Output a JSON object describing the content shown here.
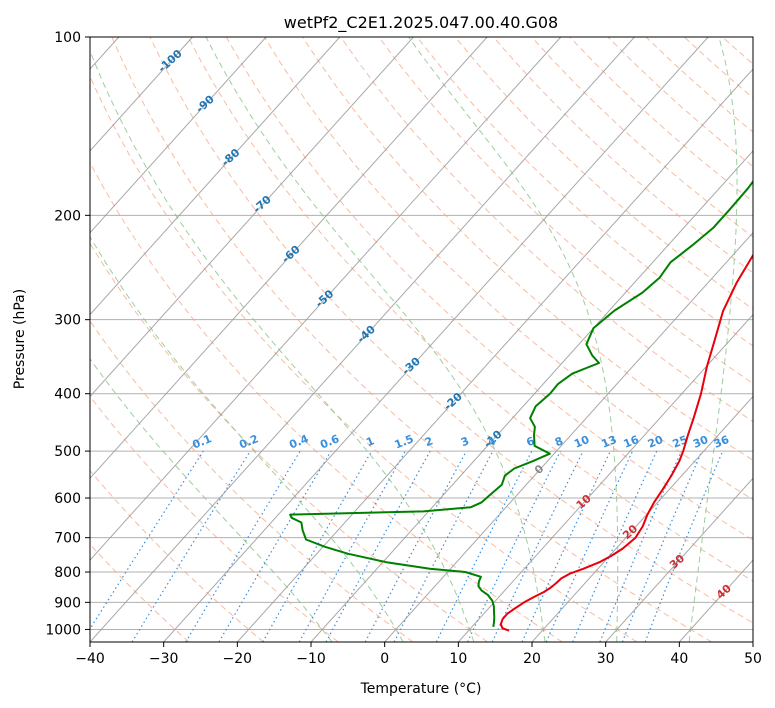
{
  "chart_data": {
    "type": "line",
    "title": "wetPf2_C2E1.2025.047.00.40.G08",
    "xlabel": "Temperature (°C)",
    "ylabel": "Pressure (hPa)",
    "xlim": [
      -40,
      50
    ],
    "ylim": [
      1050,
      100
    ],
    "y_scale": "log",
    "grid": true,
    "x_ticks": [
      "−40",
      "−30",
      "−20",
      "−10",
      "0",
      "10",
      "20",
      "30",
      "40",
      "50"
    ],
    "x_tick_values": [
      -40,
      -30,
      -20,
      -10,
      0,
      10,
      20,
      30,
      40,
      50
    ],
    "y_ticks": [
      "100",
      "200",
      "300",
      "400",
      "500",
      "600",
      "700",
      "800",
      "900",
      "1000"
    ],
    "y_tick_values": [
      100,
      200,
      300,
      400,
      500,
      600,
      700,
      800,
      900,
      1000
    ],
    "series": [
      {
        "role": "temperature",
        "color": "#e8000b",
        "points": [
          [
            1005,
            15.5
          ],
          [
            995,
            14.3
          ],
          [
            980,
            13.6
          ],
          [
            960,
            13.2
          ],
          [
            940,
            13.2
          ],
          [
            920,
            13.6
          ],
          [
            900,
            14.1
          ],
          [
            880,
            14.8
          ],
          [
            865,
            15.5
          ],
          [
            850,
            15.9
          ],
          [
            835,
            16.1
          ],
          [
            820,
            16.2
          ],
          [
            805,
            16.8
          ],
          [
            790,
            18.0
          ],
          [
            770,
            19.4
          ],
          [
            750,
            20.3
          ],
          [
            730,
            20.9
          ],
          [
            700,
            21.3
          ],
          [
            670,
            20.9
          ],
          [
            640,
            20.1
          ],
          [
            610,
            19.5
          ],
          [
            580,
            19.1
          ],
          [
            550,
            18.6
          ],
          [
            520,
            17.9
          ],
          [
            500,
            17.2
          ],
          [
            470,
            15.9
          ],
          [
            440,
            14.6
          ],
          [
            400,
            12.6
          ],
          [
            360,
            10.1
          ],
          [
            320,
            7.6
          ],
          [
            290,
            5.5
          ],
          [
            260,
            3.9
          ],
          [
            230,
            2.6
          ],
          [
            210,
            2.0
          ],
          [
            200,
            2.0
          ],
          [
            185,
            2.6
          ],
          [
            170,
            3.3
          ],
          [
            160,
            5.2
          ],
          [
            152,
            8.8
          ],
          [
            145,
            10.8
          ],
          [
            138,
            11.3
          ],
          [
            130,
            10.9
          ],
          [
            122,
            10.5
          ],
          [
            115,
            11.4
          ],
          [
            108,
            14.0
          ],
          [
            103,
            16.4
          ],
          [
            100,
            17.5
          ]
        ]
      },
      {
        "role": "dewpoint",
        "color": "#008000",
        "points": [
          [
            990,
            12.9
          ],
          [
            975,
            12.5
          ],
          [
            955,
            11.9
          ],
          [
            935,
            11.2
          ],
          [
            915,
            10.5
          ],
          [
            895,
            9.6
          ],
          [
            875,
            8.3
          ],
          [
            860,
            6.9
          ],
          [
            845,
            5.9
          ],
          [
            830,
            5.4
          ],
          [
            815,
            5.1
          ],
          [
            800,
            2.4
          ],
          [
            790,
            -2.8
          ],
          [
            770,
            -9.5
          ],
          [
            745,
            -15.8
          ],
          [
            725,
            -19.8
          ],
          [
            705,
            -23.2
          ],
          [
            680,
            -24.8
          ],
          [
            660,
            -25.9
          ],
          [
            648,
            -27.8
          ],
          [
            640,
            -28.4
          ],
          [
            632,
            -10.7
          ],
          [
            622,
            -4.8
          ],
          [
            610,
            -3.9
          ],
          [
            595,
            -3.7
          ],
          [
            570,
            -3.3
          ],
          [
            550,
            -4.0
          ],
          [
            535,
            -3.6
          ],
          [
            520,
            -2.0
          ],
          [
            505,
            -0.6
          ],
          [
            490,
            -3.6
          ],
          [
            470,
            -5.0
          ],
          [
            455,
            -5.9
          ],
          [
            440,
            -7.6
          ],
          [
            420,
            -8.3
          ],
          [
            400,
            -7.9
          ],
          [
            385,
            -8.0
          ],
          [
            370,
            -7.3
          ],
          [
            355,
            -5.0
          ],
          [
            345,
            -6.8
          ],
          [
            330,
            -9.0
          ],
          [
            310,
            -10.0
          ],
          [
            290,
            -9.3
          ],
          [
            270,
            -7.7
          ],
          [
            255,
            -7.2
          ],
          [
            240,
            -7.6
          ],
          [
            225,
            -6.7
          ],
          [
            210,
            -6.0
          ],
          [
            195,
            -6.0
          ],
          [
            180,
            -6.1
          ],
          [
            168,
            -6.5
          ],
          [
            160,
            -7.6
          ],
          [
            152,
            -10.2
          ],
          [
            146,
            -11.1
          ],
          [
            140,
            -9.6
          ],
          [
            132,
            -6.4
          ],
          [
            124,
            -5.0
          ],
          [
            116,
            -4.0
          ],
          [
            108,
            -2.8
          ],
          [
            102,
            -0.8
          ],
          [
            100,
            0.0
          ]
        ]
      }
    ],
    "dry_adiabats_c": [
      -30,
      -20,
      -10,
      0,
      10,
      20,
      30,
      40,
      50,
      60,
      70,
      80,
      90,
      100,
      110,
      120,
      130,
      140,
      150,
      160,
      170,
      180,
      190,
      200
    ],
    "moist_adiabats_c": [
      -10,
      0,
      10,
      20,
      30,
      40
    ],
    "mixing_ratio_lines_gkg": [
      0.1,
      0.2,
      0.4,
      0.6,
      1,
      1.5,
      2,
      3,
      4,
      6,
      8,
      10,
      13,
      16,
      20,
      25,
      30,
      36
    ],
    "mixing_ratio_labels": [
      "0.1",
      "0.2",
      "0.4",
      "0.6",
      "1",
      "1.5",
      "2",
      "3",
      "4",
      "6",
      "8",
      "10",
      "13",
      "16",
      "20",
      "25",
      "30",
      "36"
    ],
    "isotherm_labels": [
      {
        "text": "-100",
        "value": -100,
        "p": 110
      },
      {
        "text": "-90",
        "value": -90,
        "p": 130
      },
      {
        "text": "-80",
        "value": -80,
        "p": 160
      },
      {
        "text": "-70",
        "value": -70,
        "p": 192
      },
      {
        "text": "-60",
        "value": -60,
        "p": 233
      },
      {
        "text": "-50",
        "value": -50,
        "p": 277
      },
      {
        "text": "-40",
        "value": -40,
        "p": 318
      },
      {
        "text": "-30",
        "value": -30,
        "p": 360
      },
      {
        "text": "-20",
        "value": -20,
        "p": 413
      },
      {
        "text": "-10",
        "value": -10,
        "p": 478
      },
      {
        "text": "0",
        "value": 0,
        "p": 538,
        "color": "#8a8a8a"
      },
      {
        "text": "10",
        "value": 10,
        "p": 610,
        "color": "#d03030"
      },
      {
        "text": "20",
        "value": 20,
        "p": 686,
        "color": "#d03030"
      },
      {
        "text": "30",
        "value": 30,
        "p": 770,
        "color": "#d03030"
      },
      {
        "text": "40",
        "value": 40,
        "p": 865,
        "color": "#d03030"
      }
    ],
    "colors": {
      "isotherm": "#1f77b4",
      "isotherm_label_cold": "#1f77b4",
      "dry_adiabat": "#f4a582",
      "moist_adiabat": "#86c286",
      "mixing_ratio": "#3a8fdc",
      "skewed_isotherm_line": "#999999",
      "grid": "#b0b0b0"
    }
  }
}
